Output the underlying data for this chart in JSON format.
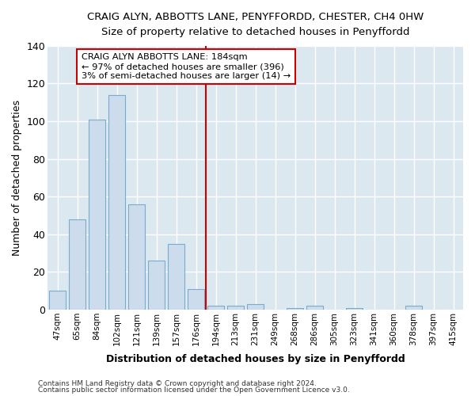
{
  "title": "CRAIG ALYN, ABBOTTS LANE, PENYFFORDD, CHESTER, CH4 0HW",
  "subtitle": "Size of property relative to detached houses in Penyffordd",
  "xlabel": "Distribution of detached houses by size in Penyffordd",
  "ylabel": "Number of detached properties",
  "bar_color": "#ccdcec",
  "bar_edge_color": "#7aaacc",
  "background_color": "#dce8f0",
  "grid_color": "#ffffff",
  "categories": [
    "47sqm",
    "65sqm",
    "84sqm",
    "102sqm",
    "121sqm",
    "139sqm",
    "157sqm",
    "176sqm",
    "194sqm",
    "213sqm",
    "231sqm",
    "249sqm",
    "268sqm",
    "286sqm",
    "305sqm",
    "323sqm",
    "341sqm",
    "360sqm",
    "378sqm",
    "397sqm",
    "415sqm"
  ],
  "values": [
    10,
    48,
    101,
    114,
    56,
    26,
    35,
    11,
    2,
    2,
    3,
    0,
    1,
    2,
    0,
    1,
    0,
    0,
    2,
    0,
    0
  ],
  "vline_x": 7.5,
  "vline_color": "#cc0000",
  "annotation_title": "CRAIG ALYN ABBOTTS LANE: 184sqm",
  "annotation_line1": "← 97% of detached houses are smaller (396)",
  "annotation_line2": "3% of semi-detached houses are larger (14) →",
  "annotation_box_color": "#ffffff",
  "annotation_box_edge": "#cc0000",
  "ylim": [
    0,
    140
  ],
  "yticks": [
    0,
    20,
    40,
    60,
    80,
    100,
    120,
    140
  ],
  "footnote1": "Contains HM Land Registry data © Crown copyright and database right 2024.",
  "footnote2": "Contains public sector information licensed under the Open Government Licence v3.0."
}
